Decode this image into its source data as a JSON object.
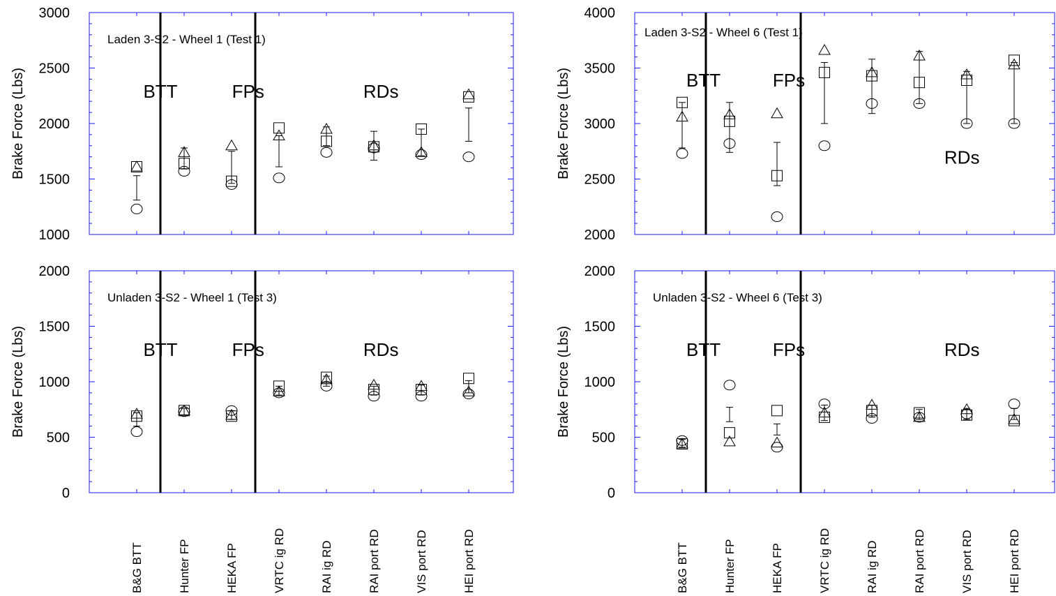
{
  "categories": [
    "B&G BTT",
    "Hunter FP",
    "HEKA FP",
    "VRTC ig RD",
    "RAI ig RD",
    "RAI port RD",
    "VIS port RD",
    "HEI port RD"
  ],
  "chart_data": [
    {
      "type": "scatter",
      "title": "Laden 3-S2 - Wheel 1 (Test 1)",
      "ylabel": "Brake Force (Lbs)",
      "ylim": [
        1000,
        3000
      ],
      "yticks": [
        1000,
        1500,
        2000,
        2500,
        3000
      ],
      "regions": [
        {
          "label": "BTT",
          "x": 0.5
        },
        {
          "label": "FPs",
          "x": 2.35
        },
        {
          "label": "RDs",
          "x": 5.15
        }
      ],
      "series": {
        "square": [
          1610,
          1640,
          1480,
          1960,
          1840,
          1790,
          1950,
          2240
        ],
        "triangle": [
          1610,
          1740,
          1800,
          1890,
          1950,
          1800,
          1740,
          2260
        ],
        "circle": [
          1230,
          1570,
          1450,
          1510,
          1740,
          1780,
          1720,
          1700
        ],
        "errorbar": [
          [
            1310,
            1530
          ],
          [
            1590,
            1780
          ],
          [
            1460,
            1750
          ],
          [
            1610,
            1890
          ],
          [
            1800,
            1970
          ],
          [
            1670,
            1930
          ],
          [
            1710,
            1950
          ],
          [
            1840,
            2140
          ]
        ]
      }
    },
    {
      "type": "scatter",
      "title": "Laden 3-S2 - Wheel 6 (Test 1)",
      "ylabel": "Brake Force (Lbs)",
      "ylim": [
        2000,
        4000
      ],
      "yticks": [
        2000,
        2500,
        3000,
        3500,
        4000
      ],
      "regions": [
        {
          "label": "BTT",
          "x": 0.45
        },
        {
          "label": "FPs",
          "x": 2.25
        },
        {
          "label": "RDs",
          "x": 5.9,
          "yValue": 2700
        }
      ],
      "series": {
        "square": [
          3190,
          3020,
          2530,
          3460,
          3430,
          3370,
          3390,
          3570
        ],
        "triangle": [
          3060,
          3080,
          3090,
          3660,
          3460,
          3610,
          3440,
          3530
        ],
        "circle": [
          2730,
          2820,
          2160,
          2800,
          3180,
          3180,
          3000,
          3000
        ],
        "errorbar": [
          [
            2780,
            3190
          ],
          [
            2740,
            3190
          ],
          [
            2440,
            2830
          ],
          [
            3000,
            3550
          ],
          [
            3090,
            3580
          ],
          [
            3180,
            3650
          ],
          [
            3000,
            3470
          ],
          [
            3000,
            3550
          ]
        ]
      }
    },
    {
      "type": "scatter",
      "title": "Unladen 3-S2 - Wheel 1 (Test 3)",
      "ylabel": "Brake Force (Lbs)",
      "ylim": [
        0,
        2000
      ],
      "yticks": [
        0,
        500,
        1000,
        1500,
        2000
      ],
      "regions": [
        {
          "label": "BTT",
          "x": 0.5
        },
        {
          "label": "FPs",
          "x": 2.35
        },
        {
          "label": "RDs",
          "x": 5.15
        }
      ],
      "series": {
        "square": [
          690,
          740,
          690,
          960,
          1040,
          930,
          930,
          1030
        ],
        "triangle": [
          710,
          740,
          700,
          910,
          1020,
          970,
          960,
          910
        ],
        "circle": [
          550,
          730,
          740,
          900,
          960,
          870,
          870,
          890
        ],
        "errorbar": [
          [
            600,
            720
          ],
          [
            700,
            760
          ],
          [
            660,
            740
          ],
          [
            880,
            960
          ],
          [
            960,
            1050
          ],
          [
            880,
            960
          ],
          [
            880,
            970
          ],
          [
            900,
            1010
          ]
        ]
      }
    },
    {
      "type": "scatter",
      "title": "Unladen 3-S2 - Wheel 6 (Test 3)",
      "ylabel": "Brake Force (Lbs)",
      "ylim": [
        0,
        2000
      ],
      "yticks": [
        0,
        500,
        1000,
        1500,
        2000
      ],
      "regions": [
        {
          "label": "BTT",
          "x": 0.45
        },
        {
          "label": "FPs",
          "x": 2.25
        },
        {
          "label": "RDs",
          "x": 5.9
        }
      ],
      "series": {
        "square": [
          440,
          540,
          740,
          680,
          740,
          720,
          700,
          650
        ],
        "triangle": [
          440,
          460,
          450,
          720,
          790,
          680,
          750,
          660
        ],
        "circle": [
          470,
          970,
          410,
          800,
          670,
          680,
          710,
          800
        ],
        "errorbar": [
          [
            410,
            480
          ],
          [
            640,
            770
          ],
          [
            520,
            620
          ],
          [
            650,
            790
          ],
          [
            680,
            790
          ],
          [
            660,
            750
          ],
          [
            660,
            760
          ],
          [
            660,
            760
          ]
        ]
      }
    }
  ]
}
